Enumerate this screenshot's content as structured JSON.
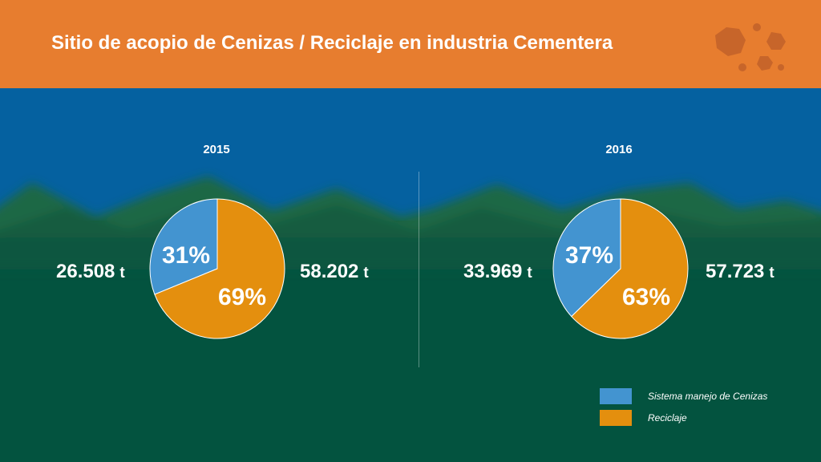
{
  "header": {
    "title": "Sitio de acopio de Cenizas / Reciclaje en industria Cementera"
  },
  "colors": {
    "header": "#e77d2f",
    "sky": "#0561a0",
    "field": "#03533f",
    "cenizas": "#4394d0",
    "reciclaje": "#e48f0e"
  },
  "icons": [
    "hexagon-cluster-logo-icon"
  ],
  "chart_data": [
    {
      "type": "pie",
      "title": "2015",
      "slices": [
        {
          "label": "Sistema manejo de Cenizas",
          "value": 31,
          "display": "31%",
          "amount": "26.508"
        },
        {
          "label": "Reciclaje",
          "value": 69,
          "display": "69%",
          "amount": "58.202"
        }
      ],
      "unit": "t"
    },
    {
      "type": "pie",
      "title": "2016",
      "slices": [
        {
          "label": "Sistema manejo de Cenizas",
          "value": 37,
          "display": "37%",
          "amount": "33.969"
        },
        {
          "label": "Reciclaje",
          "value": 63,
          "display": "63%",
          "amount": "57.723"
        }
      ],
      "unit": "t"
    }
  ],
  "legend": {
    "placement": "bottom-right",
    "items": [
      "Sistema manejo de Cenizas",
      "Reciclaje"
    ]
  }
}
